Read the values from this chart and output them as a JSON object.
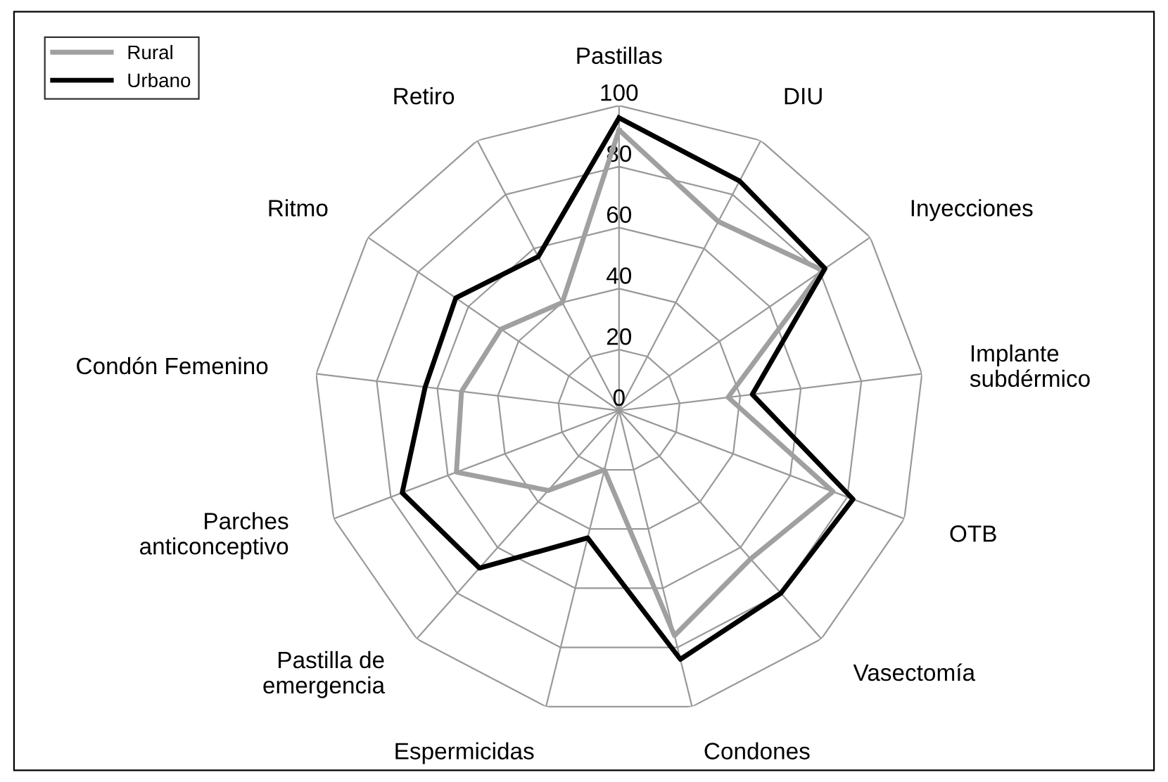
{
  "chart_data": {
    "type": "radar",
    "categories": [
      "Pastillas",
      "DIU",
      "Inyecciones",
      "Implante\nsubdérmico",
      "OTB",
      "Vasectomía",
      "Condones",
      "Espermicidas",
      "Pastilla de\nemergencia",
      "Parches\nanticonceptivo",
      "Condón Femenino",
      "Ritmo",
      "Retiro"
    ],
    "series": [
      {
        "name": "Rural",
        "color": "#a0a0a0",
        "values": [
          92,
          70,
          81,
          36,
          75,
          65,
          76,
          20,
          35,
          57,
          52,
          47,
          40
        ]
      },
      {
        "name": "Urbano",
        "color": "#000000",
        "values": [
          96,
          85,
          82,
          44,
          82,
          80,
          84,
          43,
          69,
          76,
          64,
          65,
          57
        ]
      }
    ],
    "ylim": [
      0,
      100
    ],
    "yticks": [
      0,
      20,
      40,
      60,
      80,
      100
    ],
    "grid": true,
    "legend": "top left",
    "marker": "none"
  }
}
